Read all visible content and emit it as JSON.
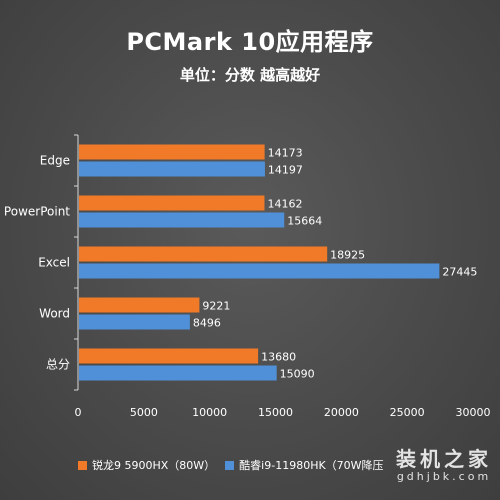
{
  "chart_data": {
    "type": "bar",
    "orientation": "horizontal",
    "title": "PCMark 10应用程序",
    "subtitle": "单位：分数 越高越好",
    "categories": [
      "Edge",
      "PowerPoint",
      "Excel",
      "Word",
      "总分"
    ],
    "series": [
      {
        "name": "锐龙9 5900HX（80W）",
        "color": "#f07a27",
        "values": [
          14173,
          14162,
          18925,
          9221,
          13680
        ]
      },
      {
        "name": "酷睿i9-11980HK（70W降压",
        "color": "#4f90d9",
        "values": [
          14197,
          15664,
          27445,
          8496,
          15090
        ]
      }
    ],
    "xlim": [
      0,
      30000
    ],
    "xticks": [
      0,
      5000,
      10000,
      15000,
      20000,
      25000,
      30000
    ],
    "grid": false,
    "legend_position": "bottom"
  },
  "watermark": {
    "main": "装机之家",
    "sub": "gdhjbk.com"
  }
}
